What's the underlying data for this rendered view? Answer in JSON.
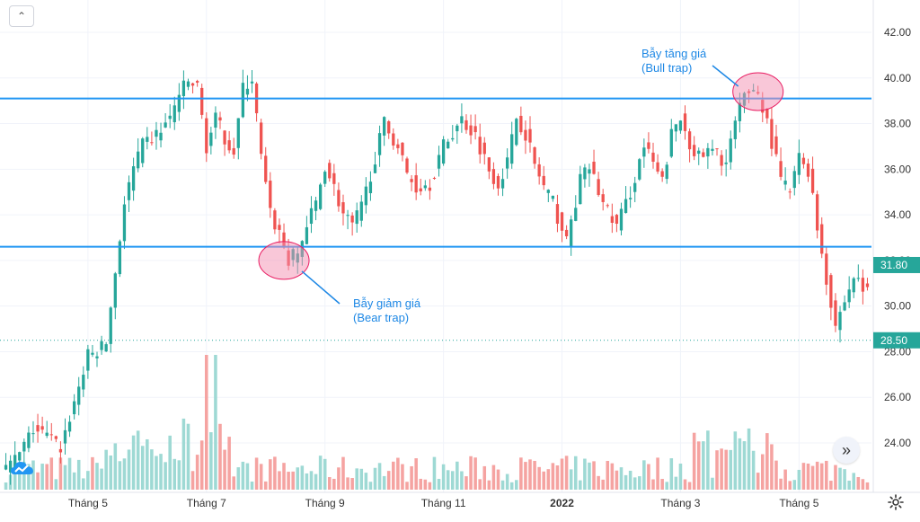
{
  "chart_data": {
    "type": "candlestick",
    "price_axis": {
      "ylim": [
        22.0,
        43.2
      ],
      "ticks": [
        "42.00",
        "40.00",
        "38.00",
        "36.00",
        "34.00",
        "32.00",
        "30.00",
        "28.00",
        "26.00",
        "24.00"
      ],
      "tick_values": [
        42,
        40,
        38,
        36,
        34,
        32,
        30,
        28,
        26,
        24
      ]
    },
    "time_axis": {
      "labels": [
        "Tháng 5",
        "Tháng 7",
        "Tháng 9",
        "Tháng 11",
        "2022",
        "Tháng 3",
        "Tháng 5"
      ],
      "label_positions": [
        18,
        44,
        70,
        96,
        122,
        148,
        174
      ],
      "bar_count": 190
    },
    "price_badges": [
      {
        "value": 31.8,
        "label": "31.80",
        "color": "#26a69a"
      },
      {
        "value": 28.5,
        "label": "28.50",
        "color": "#26a69a"
      }
    ],
    "horizontal_lines": [
      {
        "value": 39.1,
        "color": "#2196f3"
      },
      {
        "value": 32.6,
        "color": "#2196f3"
      }
    ],
    "annotations": [
      {
        "text_lines": [
          "Bẫy tăng giá",
          "(Bull trap)"
        ],
        "circle_bar": 165,
        "circle_value": 39.4
      },
      {
        "text_lines": [
          "Bẫy giảm giá",
          "(Bear trap)"
        ],
        "circle_bar": 61,
        "circle_value": 32.0
      }
    ],
    "close_path": [
      [
        0,
        22.8
      ],
      [
        3,
        23.5
      ],
      [
        6,
        24.6
      ],
      [
        9,
        24.3
      ],
      [
        12,
        23.8
      ],
      [
        15,
        25.8
      ],
      [
        18,
        27.8
      ],
      [
        20,
        28.0
      ],
      [
        22,
        28.4
      ],
      [
        24,
        31.5
      ],
      [
        26,
        34.5
      ],
      [
        28,
        36.0
      ],
      [
        30,
        37.0
      ],
      [
        33,
        37.5
      ],
      [
        36,
        38.2
      ],
      [
        38,
        39.3
      ],
      [
        40,
        39.8
      ],
      [
        42,
        39.6
      ],
      [
        44,
        37.0
      ],
      [
        46,
        38.2
      ],
      [
        48,
        37.4
      ],
      [
        50,
        36.8
      ],
      [
        52,
        39.5
      ],
      [
        54,
        40.0
      ],
      [
        56,
        36.5
      ],
      [
        58,
        34.0
      ],
      [
        60,
        33.2
      ],
      [
        62,
        32.0
      ],
      [
        64,
        32.3
      ],
      [
        66,
        33.5
      ],
      [
        68,
        34.5
      ],
      [
        70,
        36.2
      ],
      [
        72,
        35.2
      ],
      [
        74,
        34.0
      ],
      [
        76,
        33.5
      ],
      [
        78,
        34.3
      ],
      [
        80,
        35.8
      ],
      [
        83,
        38.0
      ],
      [
        86,
        37.0
      ],
      [
        88,
        35.8
      ],
      [
        90,
        35.2
      ],
      [
        93,
        35.4
      ],
      [
        96,
        37.0
      ],
      [
        98,
        37.6
      ],
      [
        100,
        38.2
      ],
      [
        103,
        37.5
      ],
      [
        106,
        36.0
      ],
      [
        108,
        35.4
      ],
      [
        110,
        36.3
      ],
      [
        112,
        38.3
      ],
      [
        114,
        37.6
      ],
      [
        116,
        36.2
      ],
      [
        118,
        35.2
      ],
      [
        120,
        34.5
      ],
      [
        123,
        32.8
      ],
      [
        126,
        35.5
      ],
      [
        128,
        36.1
      ],
      [
        131,
        34.5
      ],
      [
        134,
        33.5
      ],
      [
        137,
        35.0
      ],
      [
        140,
        37.0
      ],
      [
        142,
        36.2
      ],
      [
        144,
        35.4
      ],
      [
        146,
        37.5
      ],
      [
        148,
        38.2
      ],
      [
        150,
        37.2
      ],
      [
        152,
        36.5
      ],
      [
        155,
        36.8
      ],
      [
        158,
        36.3
      ],
      [
        160,
        38.0
      ],
      [
        162,
        39.2
      ],
      [
        164,
        39.6
      ],
      [
        166,
        38.8
      ],
      [
        168,
        37.2
      ],
      [
        170,
        35.5
      ],
      [
        172,
        35.0
      ],
      [
        174,
        36.5
      ],
      [
        176,
        36.0
      ],
      [
        178,
        33.5
      ],
      [
        180,
        31.2
      ],
      [
        182,
        29.2
      ],
      [
        184,
        30.2
      ],
      [
        186,
        31.3
      ],
      [
        188,
        30.8
      ],
      [
        189,
        30.6
      ]
    ]
  },
  "ui": {
    "collapse_icon": "chevron-up-icon",
    "scroll_icon": "double-chevron-right-icon",
    "settings_icon": "gear-icon",
    "logo_icon": "cloud-logo-icon",
    "scroll_glyph": "»",
    "collapse_glyph": "⌃"
  },
  "colors": {
    "up": "#26a69a",
    "down": "#ef5350",
    "volume_up": "#9ed9d4",
    "volume_down": "#f5a3a1",
    "grid": "#f0f3fa",
    "annotation_text": "#1e88e5",
    "trap_fill": "#f48fb1"
  }
}
